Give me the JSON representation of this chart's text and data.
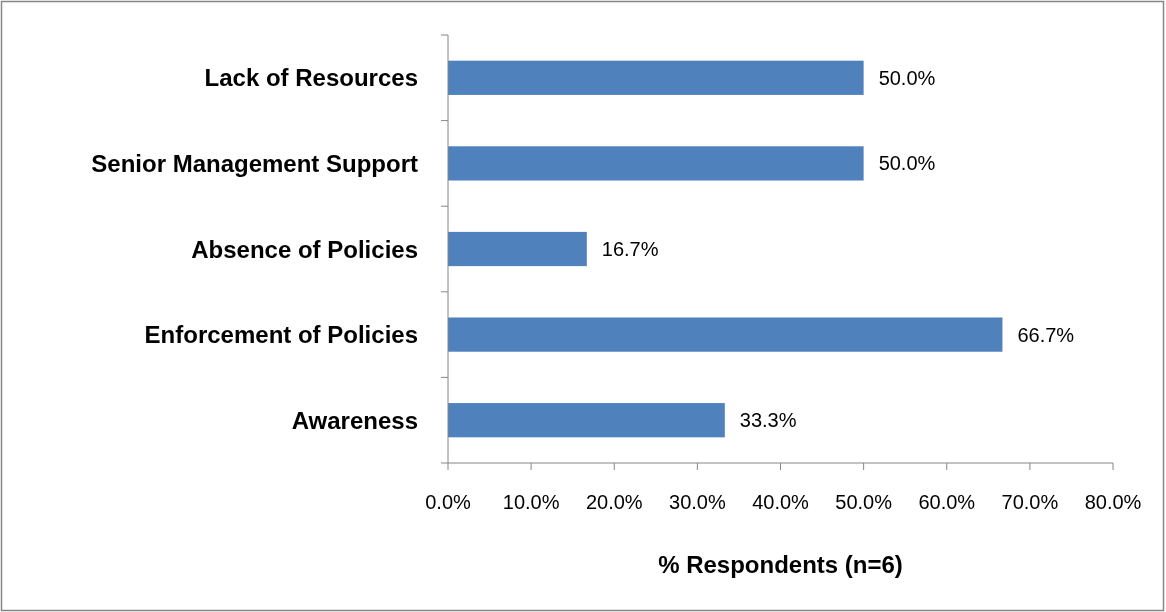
{
  "chart_data": {
    "type": "bar",
    "orientation": "horizontal",
    "xlabel": "% Respondents (n=6)",
    "categories": [
      "Lack of Resources",
      "Senior Management Support",
      "Absence of Policies",
      "Enforcement of Policies",
      "Awareness"
    ],
    "values": [
      50,
      50,
      16.7,
      66.7,
      33.3
    ],
    "value_labels": [
      "50.0%",
      "50.0%",
      "16.7%",
      "66.7%",
      "33.3%"
    ],
    "color": "#4f81bd",
    "xlim": [
      0,
      80
    ],
    "xticks": [
      {
        "value": 0,
        "label": "0.0%"
      },
      {
        "value": 10,
        "label": "10.0%"
      },
      {
        "value": 20,
        "label": "20.0%"
      },
      {
        "value": 30,
        "label": "30.0%"
      },
      {
        "value": 40,
        "label": "40.0%"
      },
      {
        "value": 50,
        "label": "50.0%"
      },
      {
        "value": 60,
        "label": "60.0%"
      },
      {
        "value": 70,
        "label": "70.0%"
      },
      {
        "value": 80,
        "label": "80.0%"
      }
    ],
    "grid": false
  }
}
